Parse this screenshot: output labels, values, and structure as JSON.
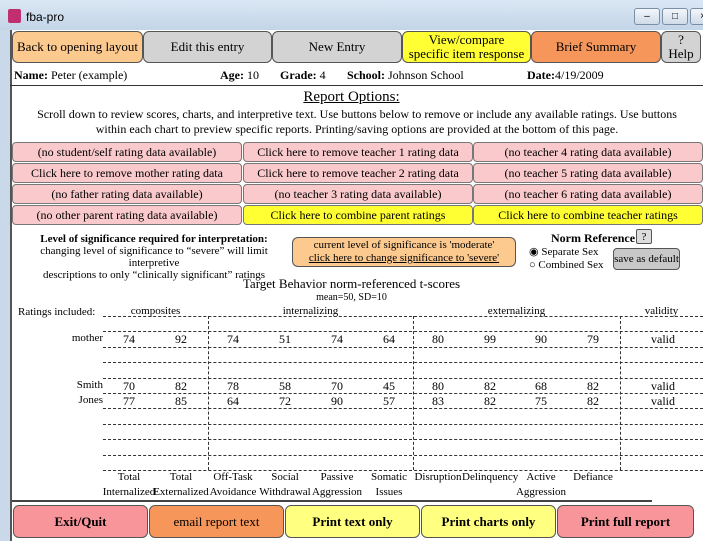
{
  "window": {
    "title": "fba-pro",
    "controls": [
      "minimize",
      "maximize",
      "close"
    ]
  },
  "toolbar": [
    {
      "label": "Back to opening layout",
      "color": "#fcc98f"
    },
    {
      "label": "Edit this entry",
      "color": "#d3d3d3"
    },
    {
      "label": "New Entry",
      "color": "#d3d3d3"
    },
    {
      "label": "View/compare specific item response",
      "color": "#ffff33"
    },
    {
      "label": "Brief Summary",
      "color": "#f7965a"
    },
    {
      "label": "? Help",
      "color": "#d3d3d3"
    }
  ],
  "student": {
    "name_label": "Name:",
    "name": "Peter (example)",
    "age_label": "Age:",
    "age": "10",
    "grade_label": "Grade:",
    "grade": "4",
    "school_label": "School:",
    "school": "Johnson School",
    "date_label": "Date:",
    "date": "4/19/2009"
  },
  "report": {
    "heading": "Report Options:",
    "instructions": "Scroll down to review scores, charts, and interpretive text.  Use buttons below to remove or include any available ratings.  Use buttons within each chart to preview specific reports.  Printing/saving options are provided at the bottom of this page."
  },
  "options": [
    "(no student/self rating data available)",
    "Click here to remove teacher 1 rating data",
    "(no teacher 4 rating data available)",
    "Click here to remove mother rating data",
    "Click here to remove teacher 2 rating data",
    "(no teacher 5 rating data available)",
    "(no father rating data available)",
    "(no teacher 3 rating data available)",
    "(no teacher 6 rating data available)",
    "(no other parent rating data available)",
    "Click here to combine parent ratings",
    "Click here to combine teacher ratings"
  ],
  "significance": {
    "title": "Level of significance required for interpretation:",
    "desc1": "changing level of significance to “severe” will limit interpretive",
    "desc2": "descriptions to only “clinically significant” ratings",
    "button_line1": "current level of significance is 'moderate'",
    "button_line2": "click here to change significance to 'severe'"
  },
  "norm": {
    "title": "Norm Reference:",
    "help": "?",
    "separate": "Separate Sex",
    "combined": "Combined Sex",
    "selected": "Separate Sex",
    "save": "save as default"
  },
  "table": {
    "title": "Target Behavior norm-referenced t-scores",
    "subtitle": "mean=50, SD=10",
    "ratings_label": "Ratings included:",
    "groups": [
      "composites",
      "internalizing",
      "externalizing",
      "validity"
    ],
    "columns": [
      [
        "Total",
        "Internalized"
      ],
      [
        "Total",
        "Externalized"
      ],
      [
        "Off-Task",
        "Avoidance"
      ],
      [
        "Social",
        "Withdrawal"
      ],
      [
        "Passive",
        "Aggression"
      ],
      [
        "Somatic",
        "Issues"
      ],
      [
        "Disruption",
        ""
      ],
      [
        "Delinquency",
        ""
      ],
      [
        "Active",
        "Aggression"
      ],
      [
        "Defiance",
        ""
      ]
    ],
    "rows": [
      {
        "rater": "mother",
        "values": [
          "74",
          "92",
          "74",
          "51",
          "74",
          "64",
          "80",
          "99",
          "90",
          "79"
        ],
        "validity": "valid"
      },
      {
        "rater": "Smith",
        "values": [
          "70",
          "82",
          "78",
          "58",
          "70",
          "45",
          "80",
          "82",
          "68",
          "82"
        ],
        "validity": "valid"
      },
      {
        "rater": "Jones",
        "values": [
          "77",
          "85",
          "64",
          "72",
          "90",
          "57",
          "83",
          "82",
          "75",
          "82"
        ],
        "validity": "valid"
      }
    ]
  },
  "footer": [
    {
      "label": "Exit/Quit",
      "color": "#f7959a"
    },
    {
      "label": "email report text",
      "color": "#f7965a"
    },
    {
      "label": "Print text only",
      "color": "#ffff80"
    },
    {
      "label": "Print charts only",
      "color": "#ffff80"
    },
    {
      "label": "Print full report",
      "color": "#f7959a"
    }
  ]
}
